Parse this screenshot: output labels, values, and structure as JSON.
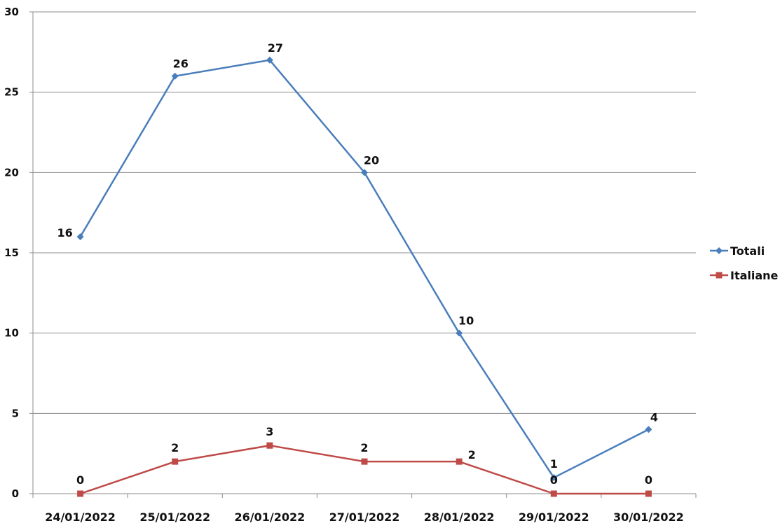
{
  "chart_data": {
    "type": "line",
    "title": "",
    "xlabel": "",
    "ylabel": "",
    "categories": [
      "24/01/2022",
      "25/01/2022",
      "26/01/2022",
      "27/01/2022",
      "28/01/2022",
      "29/01/2022",
      "30/01/2022"
    ],
    "series": [
      {
        "name": "Totali",
        "values": [
          16,
          26,
          27,
          20,
          10,
          1,
          4
        ],
        "color": "#4a7ebb",
        "marker": "diamond"
      },
      {
        "name": "Italiane",
        "values": [
          0,
          2,
          3,
          2,
          2,
          0,
          0
        ],
        "color": "#be4b48",
        "marker": "square"
      }
    ],
    "ylim": [
      0,
      30
    ],
    "yticks": [
      0,
      5,
      10,
      15,
      20,
      25,
      30
    ],
    "grid": true,
    "legend": "right"
  }
}
